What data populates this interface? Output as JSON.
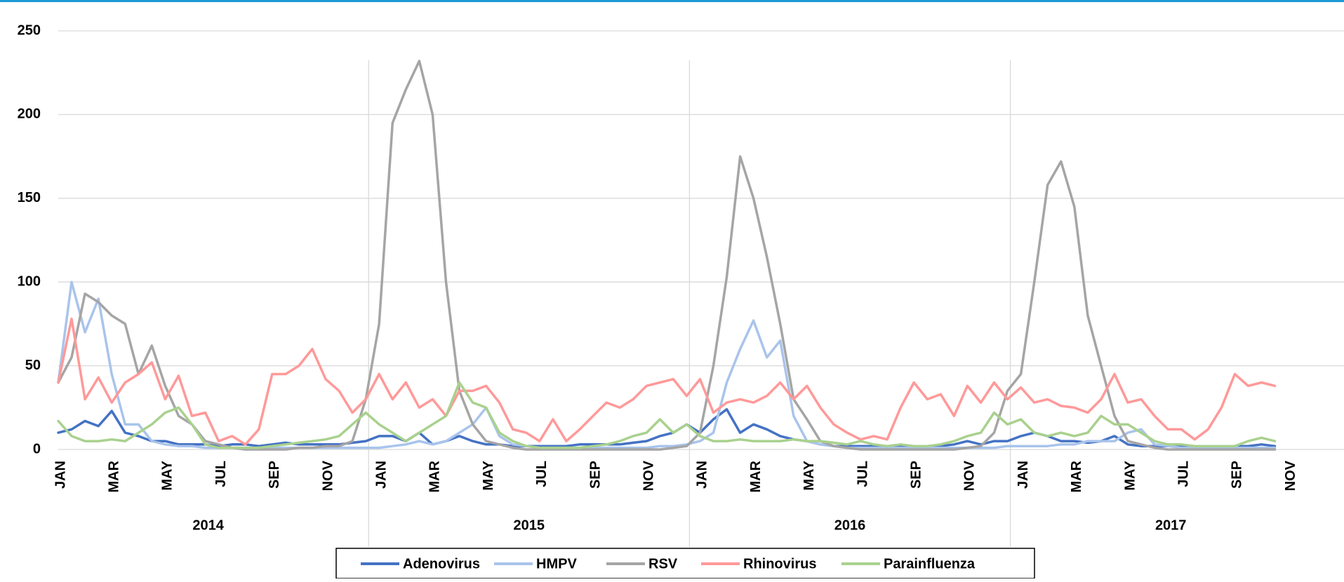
{
  "chart_data": {
    "type": "line",
    "categories": [
      "JAN",
      null,
      null,
      null,
      "MAR",
      null,
      null,
      null,
      "MAY",
      null,
      null,
      null,
      "JUL",
      null,
      null,
      null,
      "SEP",
      null,
      null,
      null,
      "NOV",
      null,
      null,
      null,
      "JAN",
      null,
      null,
      null,
      "MAR",
      null,
      null,
      null,
      "MAY",
      null,
      null,
      null,
      "JUL",
      null,
      null,
      null,
      "SEP",
      null,
      null,
      null,
      "NOV",
      null,
      null,
      null,
      "JAN",
      null,
      null,
      null,
      "MAR",
      null,
      null,
      null,
      "MAY",
      null,
      null,
      null,
      "JUL",
      null,
      null,
      null,
      "SEP",
      null,
      null,
      null,
      "NOV",
      null,
      null,
      null,
      "JAN",
      null,
      null,
      null,
      "MAR",
      null,
      null,
      null,
      "MAY",
      null,
      null,
      null,
      "JUL",
      null,
      null,
      null,
      "SEP",
      null,
      null,
      null,
      "NOV",
      null,
      null,
      null
    ],
    "years": [
      "2014",
      "2015",
      "2016",
      "2017"
    ],
    "series": [
      {
        "name": "Adenovirus",
        "color": "#4472c4",
        "values": [
          10,
          12,
          17,
          14,
          23,
          10,
          8,
          5,
          5,
          3,
          3,
          3,
          2,
          3,
          3,
          2,
          3,
          4,
          3,
          3,
          3,
          3,
          4,
          5,
          8,
          8,
          5,
          10,
          3,
          5,
          8,
          5,
          3,
          3,
          2,
          2,
          2,
          2,
          2,
          3,
          3,
          3,
          3,
          4,
          5,
          8,
          10,
          15,
          10,
          18,
          24,
          10,
          15,
          12,
          8,
          6,
          5,
          3,
          2,
          2,
          2,
          2,
          2,
          2,
          2,
          2,
          2,
          3,
          5,
          3,
          5,
          5,
          8,
          10,
          8,
          5,
          5,
          4,
          5,
          8,
          3,
          2,
          2,
          2,
          2,
          2,
          2,
          2,
          2,
          2,
          3,
          2,
          null,
          null,
          null,
          null
        ]
      },
      {
        "name": "HMPV",
        "color": "#a9c4eb",
        "values": [
          40,
          100,
          70,
          90,
          45,
          15,
          15,
          5,
          3,
          2,
          2,
          1,
          1,
          1,
          1,
          1,
          1,
          1,
          1,
          1,
          1,
          1,
          1,
          1,
          1,
          2,
          3,
          5,
          3,
          5,
          10,
          15,
          25,
          8,
          3,
          2,
          1,
          1,
          1,
          1,
          1,
          1,
          1,
          1,
          1,
          2,
          2,
          3,
          5,
          10,
          40,
          60,
          77,
          55,
          65,
          20,
          5,
          3,
          2,
          1,
          1,
          1,
          1,
          1,
          1,
          1,
          1,
          1,
          1,
          1,
          1,
          2,
          2,
          2,
          2,
          3,
          3,
          5,
          5,
          5,
          10,
          12,
          3,
          2,
          1,
          1,
          1,
          1,
          1,
          1,
          1,
          1,
          null,
          null,
          null,
          null
        ]
      },
      {
        "name": "RSV",
        "color": "#a5a5a5",
        "values": [
          40,
          55,
          93,
          88,
          80,
          75,
          45,
          62,
          38,
          20,
          15,
          5,
          3,
          1,
          0,
          0,
          0,
          0,
          1,
          1,
          2,
          2,
          5,
          30,
          75,
          195,
          215,
          232,
          200,
          100,
          35,
          15,
          5,
          3,
          1,
          0,
          0,
          0,
          0,
          0,
          0,
          0,
          0,
          0,
          0,
          0,
          1,
          2,
          10,
          50,
          103,
          175,
          150,
          115,
          75,
          30,
          18,
          5,
          2,
          1,
          0,
          0,
          0,
          0,
          0,
          0,
          0,
          0,
          1,
          2,
          10,
          35,
          45,
          100,
          158,
          172,
          145,
          80,
          50,
          20,
          5,
          3,
          1,
          0,
          0,
          0,
          0,
          0,
          0,
          0,
          0,
          0,
          null,
          null,
          null,
          null
        ]
      },
      {
        "name": "Rhinovirus",
        "color": "#ff9999",
        "values": [
          40,
          78,
          30,
          43,
          28,
          40,
          45,
          52,
          30,
          44,
          20,
          22,
          5,
          8,
          3,
          12,
          45,
          45,
          50,
          60,
          42,
          35,
          22,
          30,
          45,
          30,
          40,
          25,
          30,
          20,
          35,
          35,
          38,
          28,
          12,
          10,
          5,
          18,
          5,
          12,
          20,
          28,
          25,
          30,
          38,
          40,
          42,
          32,
          42,
          22,
          28,
          30,
          28,
          32,
          40,
          30,
          38,
          25,
          15,
          10,
          6,
          8,
          6,
          25,
          40,
          30,
          33,
          20,
          38,
          28,
          40,
          30,
          37,
          28,
          30,
          26,
          25,
          22,
          30,
          45,
          28,
          30,
          20,
          12,
          12,
          6,
          12,
          25,
          45,
          38,
          40,
          38,
          null,
          null,
          null,
          null
        ]
      },
      {
        "name": "Parainfluenza",
        "color": "#a9d18e",
        "values": [
          17,
          8,
          5,
          5,
          6,
          5,
          10,
          15,
          22,
          25,
          15,
          3,
          1,
          1,
          1,
          1,
          2,
          3,
          4,
          5,
          6,
          8,
          15,
          22,
          15,
          10,
          5,
          10,
          15,
          20,
          40,
          28,
          25,
          10,
          5,
          2,
          1,
          1,
          1,
          1,
          2,
          3,
          5,
          8,
          10,
          18,
          10,
          15,
          8,
          5,
          5,
          6,
          5,
          5,
          5,
          6,
          5,
          5,
          4,
          3,
          5,
          3,
          2,
          3,
          2,
          2,
          3,
          5,
          8,
          10,
          22,
          15,
          18,
          10,
          8,
          10,
          8,
          10,
          20,
          15,
          15,
          10,
          5,
          3,
          3,
          2,
          2,
          2,
          2,
          5,
          7,
          5,
          null,
          null,
          null,
          null
        ]
      }
    ],
    "ylim": [
      0,
      250
    ],
    "yticks": [
      0,
      50,
      100,
      150,
      200,
      250
    ],
    "grid": true,
    "legend": "bottom"
  }
}
